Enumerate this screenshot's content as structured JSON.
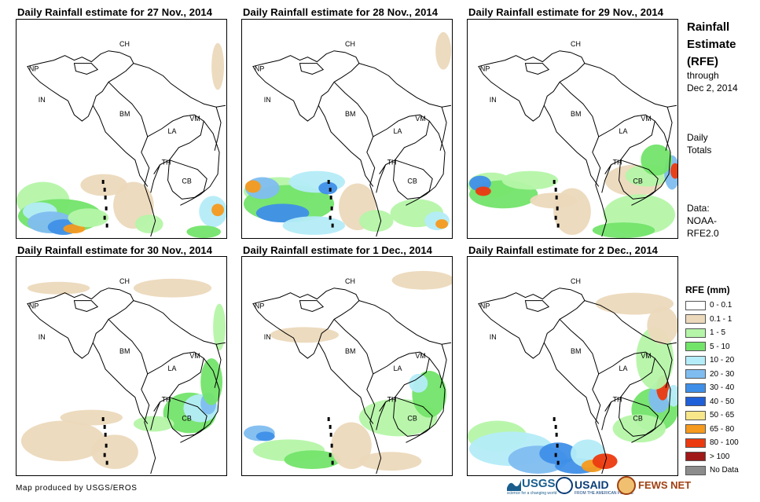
{
  "panels": [
    {
      "title": "Daily Rainfall estimate for 27 Nov., 2014"
    },
    {
      "title": "Daily Rainfall estimate for 28 Nov., 2014"
    },
    {
      "title": "Daily Rainfall estimate for 29 Nov., 2014"
    },
    {
      "title": "Daily Rainfall estimate for 30 Nov., 2014"
    },
    {
      "title": "Daily Rainfall estimate for 1 Dec., 2014"
    },
    {
      "title": "Daily Rainfall estimate for 2 Dec., 2014"
    }
  ],
  "country_labels": {
    "ch": "CH",
    "np": "NP",
    "in": "IN",
    "bm": "BM",
    "la": "LA",
    "vm": "VM",
    "th": "TH",
    "cb": "CB"
  },
  "sidebar": {
    "title_line1": "Rainfall",
    "title_line2": "Estimate",
    "title_line3": "(RFE)",
    "through_line1": "through",
    "through_line2": "Dec 2, 2014",
    "totals_line1": "Daily",
    "totals_line2": "Totals",
    "data_line1": "Data:",
    "data_line2": "NOAA-",
    "data_line3": "RFE2.0"
  },
  "legend": {
    "title": "RFE (mm)",
    "items": [
      {
        "label": "0 - 0.1",
        "color": "#ffffff"
      },
      {
        "label": "0.1 - 1",
        "color": "#ecd9bc"
      },
      {
        "label": "1 - 5",
        "color": "#b5f5a8"
      },
      {
        "label": "5 - 10",
        "color": "#73e46a"
      },
      {
        "label": "10 - 20",
        "color": "#b4ecf8"
      },
      {
        "label": "20 - 30",
        "color": "#7fbdf0"
      },
      {
        "label": "30 - 40",
        "color": "#3f8fe8"
      },
      {
        "label": "40 - 50",
        "color": "#1f5fd8"
      },
      {
        "label": "50 - 65",
        "color": "#f8e68a"
      },
      {
        "label": "65 - 80",
        "color": "#f59a1e"
      },
      {
        "label": "80 - 100",
        "color": "#ec3a10"
      },
      {
        "label": "> 100",
        "color": "#a01818"
      },
      {
        "label": "No Data",
        "color": "#8c8c8c"
      }
    ]
  },
  "credit": "Map produced by USGS/EROS",
  "logos": {
    "usgs": "USGS",
    "usgs_tag": "science for a changing world",
    "usaid": "USAID",
    "usaid_tag": "FROM THE AMERICAN PEOPLE",
    "fews": "FEWS NET"
  }
}
